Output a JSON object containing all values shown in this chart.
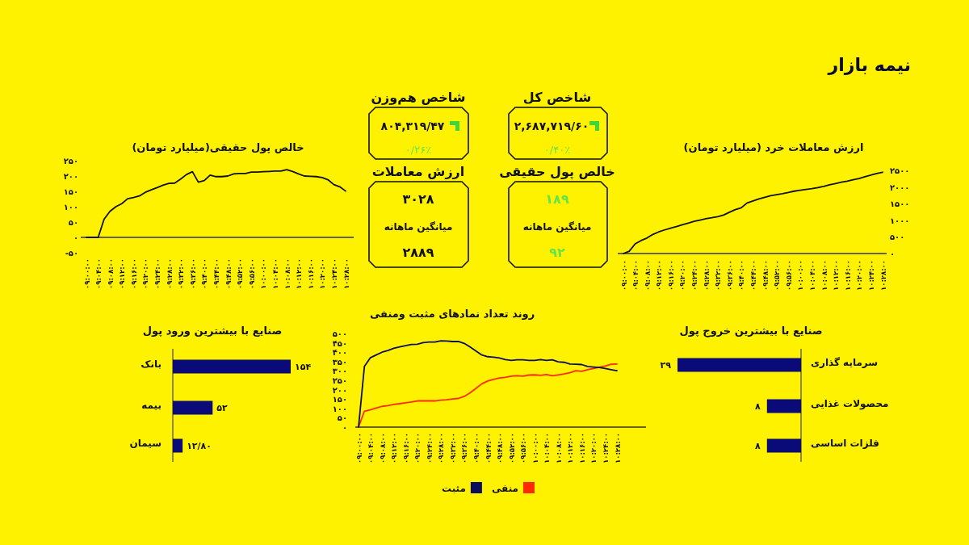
{
  "chart_data": [
    {
      "type": "other",
      "title": "نیمه بازار",
      "annotations": [
        "شاخص کل",
        "۲,۶۸۷,۷۱۹/۶۰",
        "۰/۴۰٪",
        "شاخص هم‌وزن",
        "۸۰۴,۳۱۹/۴۷",
        "۰/۲۶٪",
        "خالص پول حقیقی",
        "۱۸۹",
        "میانگین ماهانه",
        "۹۲",
        "ارزش معاملات",
        "۳۰۲۸",
        "میانگین ماهانه",
        "۲۸۸۹"
      ]
    },
    {
      "type": "line",
      "title": "ارزش معاملات خرد (میلیارد تومان)",
      "categories": [
        "۰۹:۰۰:۰۰",
        null,
        "۰۹:۰۴:۰۰",
        null,
        "۰۹:۰۸:۰۰",
        null,
        "۰۹:۱۲:۰۰",
        null,
        "۰۹:۱۶:۰۰",
        null,
        "۰۹:۲۰:۰۰",
        null,
        "۰۹:۲۴:۰۰",
        null,
        "۰۹:۲۸:۰۰",
        null,
        "۰۹:۳۲:۰۰",
        null,
        "۰۹:۳۶:۰۰",
        null,
        "۰۹:۴۰:۰۰",
        null,
        "۰۹:۴۴:۰۰",
        null,
        "۰۹:۴۸:۰۰",
        null,
        "۰۹:۵۲:۰۰",
        null,
        "۰۹:۵۶:۰۰",
        null,
        "۱۰:۰۰:۰۰",
        null,
        "۱۰:۰۴:۰۰",
        null,
        "۱۰:۰۸:۰۰",
        null,
        "۱۰:۱۲:۰۰",
        null,
        "۱۰:۱۶:۰۰",
        null,
        "۱۰:۲۰:۰۰",
        null,
        "۱۰:۲۴:۰۰",
        null,
        "۱۰:۲۸:۰۰"
      ],
      "series": [
        {
          "color": "#111111",
          "values": [
            0,
            70,
            290,
            390,
            465,
            575,
            650,
            710,
            760,
            810,
            865,
            915,
            965,
            1005,
            1045,
            1075,
            1110,
            1155,
            1240,
            1320,
            1375,
            1520,
            1580,
            1640,
            1690,
            1740,
            1770,
            1800,
            1835,
            1875,
            1900,
            1925,
            1950,
            1980,
            2020,
            2065,
            2105,
            2145,
            2175,
            2215,
            2255,
            2310,
            2355,
            2405,
            2445
          ]
        }
      ],
      "ylim": [
        0,
        2500
      ],
      "yticks": [
        {
          "value": 0,
          "label": "۰"
        },
        {
          "value": 500,
          "label": "۵۰۰"
        },
        {
          "value": 1000,
          "label": "۱۰۰۰"
        },
        {
          "value": 1500,
          "label": "۱۵۰۰"
        },
        {
          "value": 2000,
          "label": "۲۰۰۰"
        },
        {
          "value": 2500,
          "label": "۲۵۰۰"
        }
      ]
    },
    {
      "type": "line",
      "title": "خالص پول حقیقی(میلیارد تومان)",
      "categories": [
        "۰۹:۰۰:۰۰",
        null,
        "۰۹:۰۴:۰۰",
        null,
        "۰۹:۰۸:۰۰",
        null,
        "۰۹:۱۲:۰۰",
        null,
        "۰۹:۱۶:۰۰",
        null,
        "۰۹:۲۰:۰۰",
        null,
        "۰۹:۲۴:۰۰",
        null,
        "۰۹:۲۸:۰۰",
        null,
        "۰۹:۳۲:۰۰",
        null,
        "۰۹:۳۶:۰۰",
        null,
        "۰۹:۴۰:۰۰",
        null,
        "۰۹:۴۴:۰۰",
        null,
        "۰۹:۴۸:۰۰",
        null,
        "۰۹:۵۲:۰۰",
        null,
        "۰۹:۵۶:۰۰",
        null,
        "۱۰:۰۰:۰۰",
        null,
        "۱۰:۰۴:۰۰",
        null,
        "۱۰:۰۸:۰۰",
        null,
        "۱۰:۱۲:۰۰",
        null,
        "۱۰:۱۶:۰۰",
        null,
        "۱۰:۲۰:۰۰",
        null,
        "۱۰:۲۴:۰۰",
        null,
        "۱۰:۲۸:۰۰"
      ],
      "series": [
        {
          "color": "#111111",
          "values": [
            0,
            0,
            0,
            59,
            85,
            100,
            110,
            126,
            130,
            135,
            147,
            155,
            162,
            170,
            176,
            177,
            190,
            205,
            214,
            180,
            185,
            203,
            198,
            198,
            200,
            207,
            208,
            208,
            213,
            213,
            214,
            215,
            216,
            216,
            221,
            215,
            207,
            200,
            199,
            198,
            195,
            188,
            172,
            165,
            151
          ]
        }
      ],
      "ylim": [
        -50,
        250
      ],
      "yticks": [
        {
          "value": -50,
          "label": "-۵۰"
        },
        {
          "value": 0,
          "label": "۰"
        },
        {
          "value": 50,
          "label": "۵۰"
        },
        {
          "value": 100,
          "label": "۱۰۰"
        },
        {
          "value": 150,
          "label": "۱۵۰"
        },
        {
          "value": 200,
          "label": "۲۰۰"
        },
        {
          "value": 250,
          "label": "۲۵۰"
        }
      ]
    },
    {
      "type": "bar",
      "orientation": "horizontal",
      "title": "صنایع با بیشترین خروج پول",
      "categories": [
        "سرمایه گذاری",
        "محصولات غذایی",
        "فلزات اساسی"
      ],
      "values": [
        29,
        8,
        8
      ],
      "value_labels": [
        "۲۹",
        "۸",
        "۸"
      ],
      "color": "#0a0a78",
      "tick_labels": "y"
    },
    {
      "type": "line",
      "title": "روند تعداد نمادهای مثبت ومنفی",
      "categories": [
        "۰۹:۰۰:۰۰",
        null,
        "۰۹:۰۴:۰۰",
        null,
        "۰۹:۰۸:۰۰",
        null,
        "۰۹:۱۲:۰۰",
        null,
        "۰۹:۱۶:۰۰",
        null,
        "۰۹:۲۰:۰۰",
        null,
        "۰۹:۲۴:۰۰",
        null,
        "۰۹:۲۸:۰۰",
        null,
        "۰۹:۳۲:۰۰",
        null,
        "۰۹:۳۶:۰۰",
        null,
        "۰۹:۴۰:۰۰",
        null,
        "۰۹:۴۴:۰۰",
        null,
        "۰۹:۴۸:۰۰",
        null,
        "۰۹:۵۲:۰۰",
        null,
        "۰۹:۵۶:۰۰",
        null,
        "۱۰:۰۰:۰۰",
        null,
        "۱۰:۰۴:۰۰",
        null,
        "۱۰:۰۸:۰۰",
        null,
        "۱۰:۱۲:۰۰",
        null,
        "۱۰:۱۶:۰۰",
        null,
        "۱۰:۲۰:۰۰",
        null,
        "۱۰:۲۴:۰۰",
        null,
        "۱۰:۲۸:۰۰"
      ],
      "series": [
        {
          "name": "منفی",
          "color": "#ff2a00",
          "values": [
            0,
            85,
            92,
            102,
            111,
            115,
            121,
            125,
            130,
            134,
            140,
            140,
            141,
            140,
            144,
            146,
            150,
            153,
            164,
            183,
            207,
            231,
            246,
            255,
            262,
            266,
            272,
            274,
            272,
            278,
            279,
            276,
            281,
            274,
            279,
            284,
            290,
            301,
            298,
            307,
            313,
            320,
            326,
            336,
            337
          ]
        },
        {
          "name": "مثبت",
          "color": "#0d0d5e",
          "values": [
            0,
            324,
            370,
            385,
            400,
            409,
            421,
            428,
            435,
            441,
            442,
            451,
            454,
            454,
            461,
            460,
            457,
            457,
            447,
            428,
            406,
            385,
            376,
            373,
            369,
            360,
            356,
            359,
            359,
            356,
            356,
            360,
            356,
            359,
            349,
            346,
            337,
            336,
            334,
            324,
            321,
            318,
            313,
            307,
            301
          ]
        }
      ],
      "ylim": [
        0,
        500
      ],
      "yticks": [
        {
          "value": 0,
          "label": "۰"
        },
        {
          "value": 50,
          "label": "۵۰"
        },
        {
          "value": 100,
          "label": "۱۰۰"
        },
        {
          "value": 150,
          "label": "۱۵۰"
        },
        {
          "value": 200,
          "label": "۲۰۰"
        },
        {
          "value": 250,
          "label": "۲۵۰"
        },
        {
          "value": 300,
          "label": "۳۰۰"
        },
        {
          "value": 350,
          "label": "۳۵۰"
        },
        {
          "value": 400,
          "label": "۴۰۰"
        },
        {
          "value": 450,
          "label": "۴۵۰"
        },
        {
          "value": 500,
          "label": "۵۰۰"
        }
      ],
      "legend": "bottom"
    },
    {
      "type": "bar",
      "orientation": "horizontal",
      "title": "صنایع با بیشترین ورود پول",
      "categories": [
        "بانک",
        "بیمه",
        "سیمان"
      ],
      "values": [
        154,
        52,
        12.8
      ],
      "value_labels": [
        "۱۵۴",
        "۵۲",
        "۱۲/۸۰"
      ],
      "color": "#0a0a78",
      "tick_labels": "y"
    }
  ]
}
